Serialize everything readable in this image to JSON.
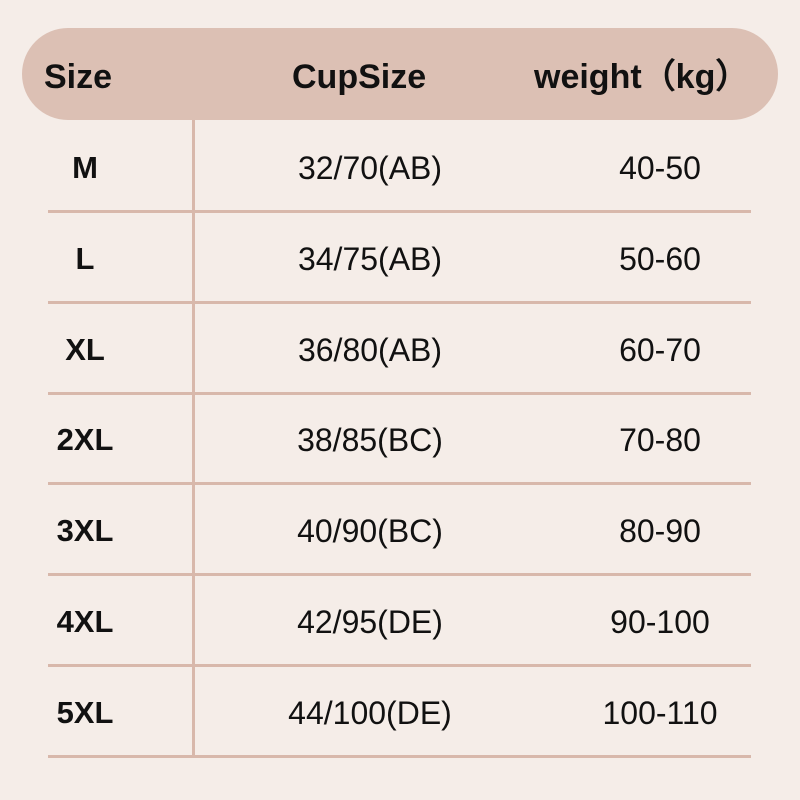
{
  "headers": {
    "size": "Size",
    "cup": "CupSize",
    "weight": "weight（kg）"
  },
  "colors": {
    "background": "#f5ede8",
    "header": "#dcc0b4",
    "lines": "#d8b8ab"
  },
  "rows": [
    {
      "size": "M",
      "cup": "32/70(AB)",
      "weight": "40-50"
    },
    {
      "size": "L",
      "cup": "34/75(AB)",
      "weight": "50-60"
    },
    {
      "size": "XL",
      "cup": "36/80(AB)",
      "weight": "60-70"
    },
    {
      "size": "2XL",
      "cup": "38/85(BC)",
      "weight": "70-80"
    },
    {
      "size": "3XL",
      "cup": "40/90(BC)",
      "weight": "80-90"
    },
    {
      "size": "4XL",
      "cup": "42/95(DE)",
      "weight": "90-100"
    },
    {
      "size": "5XL",
      "cup": "44/100(DE)",
      "weight": "100-110"
    }
  ]
}
